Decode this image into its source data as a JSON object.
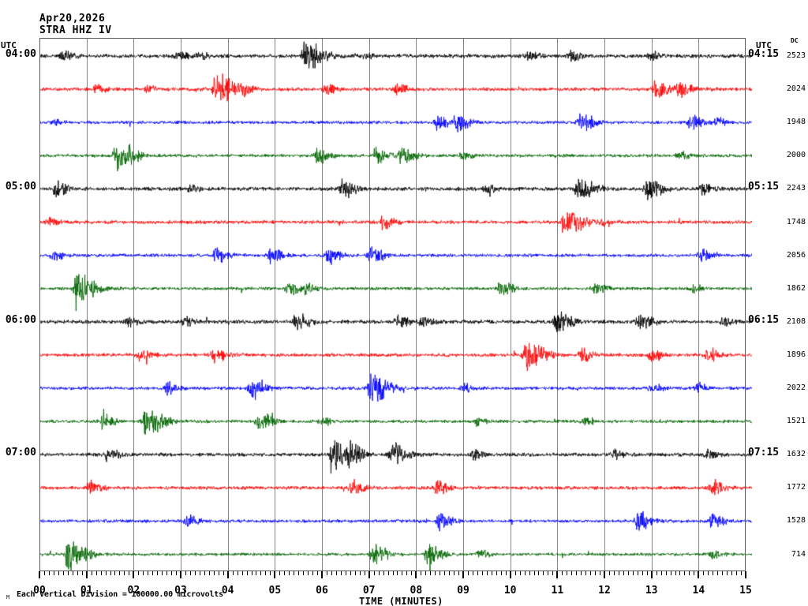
{
  "header": {
    "date": "Apr20,2026",
    "station": "STRA HHZ IV"
  },
  "left_axis": {
    "title": "UTC"
  },
  "right_axis": {
    "title": "UTC",
    "dc_header": "DC"
  },
  "x_axis": {
    "title": "TIME (MINUTES)",
    "tick_labels": [
      "00",
      "01",
      "02",
      "03",
      "04",
      "05",
      "06",
      "07",
      "08",
      "09",
      "10",
      "11",
      "12",
      "13",
      "14",
      "15"
    ],
    "minutes_per_row": 15,
    "minor_ticks_per_minute": 10
  },
  "footer": {
    "mark": "M",
    "caption": "Each Vertical Division = 100000.00 microvolts"
  },
  "colors": {
    "trace_cycle": [
      "#000000",
      "#ff0000",
      "#0000ff",
      "#006600"
    ],
    "grid": "#878787",
    "border": "#5a5a5a",
    "background": "#ffffff"
  },
  "chart_data": {
    "type": "line",
    "subtype": "helicorder-seismogram",
    "title": "STRA HHZ IV",
    "date": "Apr20,2026",
    "xlabel": "TIME (MINUTES)",
    "x_range": [
      0,
      15
    ],
    "grid": "vertical-only",
    "rows": [
      {
        "start_utc": "04:00",
        "end_utc": "04:15",
        "color_name": "black",
        "dc": 2523,
        "noise": 2.8,
        "events": [
          {
            "m": 0.5,
            "a": 0.35
          },
          {
            "m": 2.95,
            "a": 0.28
          },
          {
            "m": 3.4,
            "a": 0.22
          },
          {
            "m": 5.65,
            "a": 1.0
          },
          {
            "m": 6.9,
            "a": 0.2
          },
          {
            "m": 10.4,
            "a": 0.28
          },
          {
            "m": 11.3,
            "a": 0.32
          },
          {
            "m": 13.0,
            "a": 0.28
          }
        ]
      },
      {
        "start_utc": null,
        "end_utc": null,
        "color_name": "red",
        "dc": 2024,
        "noise": 2.6,
        "events": [
          {
            "m": 1.2,
            "a": 0.3
          },
          {
            "m": 2.3,
            "a": 0.25
          },
          {
            "m": 3.75,
            "a": 1.0
          },
          {
            "m": 4.3,
            "a": 0.35
          },
          {
            "m": 6.1,
            "a": 0.32
          },
          {
            "m": 7.6,
            "a": 0.38
          },
          {
            "m": 13.1,
            "a": 0.6
          },
          {
            "m": 13.6,
            "a": 0.5
          }
        ]
      },
      {
        "start_utc": null,
        "end_utc": null,
        "color_name": "blue",
        "dc": 1948,
        "noise": 2.3,
        "events": [
          {
            "m": 0.3,
            "a": 0.2
          },
          {
            "m": 8.45,
            "a": 0.5
          },
          {
            "m": 8.85,
            "a": 0.55
          },
          {
            "m": 11.5,
            "a": 0.6
          },
          {
            "m": 13.85,
            "a": 0.5
          },
          {
            "m": 14.4,
            "a": 0.3
          }
        ]
      },
      {
        "start_utc": null,
        "end_utc": null,
        "color_name": "green",
        "dc": 2000,
        "noise": 2.3,
        "events": [
          {
            "m": 1.65,
            "a": 1.0
          },
          {
            "m": 5.9,
            "a": 0.5
          },
          {
            "m": 7.15,
            "a": 0.5
          },
          {
            "m": 7.7,
            "a": 0.55
          },
          {
            "m": 9.0,
            "a": 0.25
          },
          {
            "m": 13.6,
            "a": 0.3
          }
        ]
      },
      {
        "start_utc": "05:00",
        "end_utc": "05:15",
        "color_name": "black",
        "dc": 2243,
        "noise": 2.7,
        "events": [
          {
            "m": 0.35,
            "a": 0.5
          },
          {
            "m": 3.2,
            "a": 0.22
          },
          {
            "m": 6.45,
            "a": 0.6
          },
          {
            "m": 9.5,
            "a": 0.28
          },
          {
            "m": 11.45,
            "a": 0.85
          },
          {
            "m": 12.9,
            "a": 0.75
          },
          {
            "m": 14.1,
            "a": 0.4
          }
        ]
      },
      {
        "start_utc": null,
        "end_utc": null,
        "color_name": "red",
        "dc": 1748,
        "noise": 2.5,
        "events": [
          {
            "m": 0.2,
            "a": 0.3
          },
          {
            "m": 7.3,
            "a": 0.45
          },
          {
            "m": 11.15,
            "a": 1.0
          },
          {
            "m": 12.0,
            "a": 0.28
          }
        ]
      },
      {
        "start_utc": null,
        "end_utc": null,
        "color_name": "blue",
        "dc": 2056,
        "noise": 2.3,
        "events": [
          {
            "m": 0.3,
            "a": 0.4
          },
          {
            "m": 3.75,
            "a": 0.55
          },
          {
            "m": 4.9,
            "a": 0.5
          },
          {
            "m": 6.15,
            "a": 0.6
          },
          {
            "m": 7.05,
            "a": 0.55
          },
          {
            "m": 14.05,
            "a": 0.45
          }
        ]
      },
      {
        "start_utc": null,
        "end_utc": null,
        "color_name": "green",
        "dc": 1862,
        "noise": 2.3,
        "events": [
          {
            "m": 0.8,
            "a": 1.0
          },
          {
            "m": 5.3,
            "a": 0.4
          },
          {
            "m": 5.65,
            "a": 0.35
          },
          {
            "m": 9.8,
            "a": 0.5
          },
          {
            "m": 11.8,
            "a": 0.4
          },
          {
            "m": 13.9,
            "a": 0.28
          }
        ]
      },
      {
        "start_utc": "06:00",
        "end_utc": "06:15",
        "color_name": "black",
        "dc": 2108,
        "noise": 2.7,
        "events": [
          {
            "m": 1.9,
            "a": 0.3
          },
          {
            "m": 3.1,
            "a": 0.28
          },
          {
            "m": 5.45,
            "a": 0.6
          },
          {
            "m": 7.6,
            "a": 0.4
          },
          {
            "m": 8.15,
            "a": 0.4
          },
          {
            "m": 11.0,
            "a": 0.7
          },
          {
            "m": 12.75,
            "a": 0.55
          },
          {
            "m": 14.5,
            "a": 0.3
          }
        ]
      },
      {
        "start_utc": null,
        "end_utc": null,
        "color_name": "red",
        "dc": 1896,
        "noise": 2.5,
        "events": [
          {
            "m": 2.15,
            "a": 0.4
          },
          {
            "m": 3.7,
            "a": 0.5
          },
          {
            "m": 10.35,
            "a": 1.0
          },
          {
            "m": 11.5,
            "a": 0.5
          },
          {
            "m": 13.0,
            "a": 0.4
          },
          {
            "m": 14.2,
            "a": 0.5
          }
        ]
      },
      {
        "start_utc": null,
        "end_utc": null,
        "color_name": "blue",
        "dc": 2022,
        "noise": 2.4,
        "events": [
          {
            "m": 2.7,
            "a": 0.4
          },
          {
            "m": 4.5,
            "a": 0.6
          },
          {
            "m": 7.05,
            "a": 1.0
          },
          {
            "m": 9.0,
            "a": 0.3
          },
          {
            "m": 13.0,
            "a": 0.3
          },
          {
            "m": 14.0,
            "a": 0.3
          }
        ]
      },
      {
        "start_utc": null,
        "end_utc": null,
        "color_name": "green",
        "dc": 1521,
        "noise": 2.3,
        "events": [
          {
            "m": 1.35,
            "a": 0.5
          },
          {
            "m": 2.25,
            "a": 1.0
          },
          {
            "m": 4.65,
            "a": 0.6
          },
          {
            "m": 6.0,
            "a": 0.3
          },
          {
            "m": 9.3,
            "a": 0.3
          },
          {
            "m": 11.6,
            "a": 0.28
          }
        ]
      },
      {
        "start_utc": "07:00",
        "end_utc": "07:15",
        "color_name": "black",
        "dc": 1632,
        "noise": 2.6,
        "events": [
          {
            "m": 1.45,
            "a": 0.4
          },
          {
            "m": 6.25,
            "a": 1.0
          },
          {
            "m": 6.6,
            "a": 0.55
          },
          {
            "m": 7.5,
            "a": 0.7
          },
          {
            "m": 9.2,
            "a": 0.3
          },
          {
            "m": 12.2,
            "a": 0.3
          },
          {
            "m": 14.2,
            "a": 0.3
          }
        ]
      },
      {
        "start_utc": null,
        "end_utc": null,
        "color_name": "red",
        "dc": 1772,
        "noise": 2.5,
        "events": [
          {
            "m": 1.05,
            "a": 0.5
          },
          {
            "m": 6.65,
            "a": 0.5
          },
          {
            "m": 8.45,
            "a": 0.4
          },
          {
            "m": 14.3,
            "a": 0.5
          }
        ]
      },
      {
        "start_utc": null,
        "end_utc": null,
        "color_name": "blue",
        "dc": 1528,
        "noise": 2.3,
        "events": [
          {
            "m": 3.15,
            "a": 0.4
          },
          {
            "m": 8.5,
            "a": 0.6
          },
          {
            "m": 12.7,
            "a": 0.65
          },
          {
            "m": 14.3,
            "a": 0.5
          }
        ]
      },
      {
        "start_utc": null,
        "end_utc": null,
        "color_name": "green",
        "dc": 714,
        "noise": 2.1,
        "events": [
          {
            "m": 0.6,
            "a": 1.0
          },
          {
            "m": 7.1,
            "a": 0.7
          },
          {
            "m": 8.25,
            "a": 0.7
          },
          {
            "m": 9.35,
            "a": 0.3
          },
          {
            "m": 14.3,
            "a": 0.28
          }
        ]
      }
    ]
  }
}
